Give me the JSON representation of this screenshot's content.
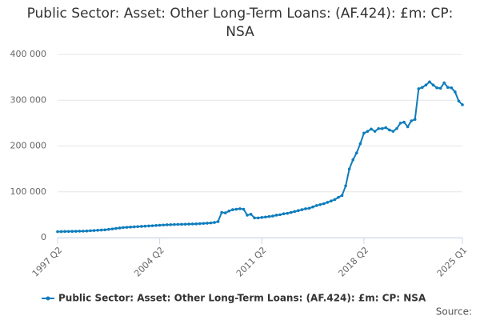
{
  "chart_data": {
    "type": "line",
    "title": "Public Sector: Asset: Other Long-Term Loans: (AF.424): £m: CP: NSA",
    "source": "Source:",
    "categories": [
      "1997 Q2",
      null,
      null,
      null,
      null,
      null,
      null,
      null,
      null,
      null,
      null,
      null,
      null,
      null,
      null,
      null,
      null,
      null,
      null,
      null,
      null,
      null,
      null,
      null,
      null,
      null,
      null,
      null,
      "2004 Q2",
      null,
      null,
      null,
      null,
      null,
      null,
      null,
      null,
      null,
      null,
      null,
      null,
      null,
      null,
      null,
      null,
      null,
      null,
      null,
      null,
      null,
      null,
      null,
      null,
      null,
      null,
      null,
      "2011 Q2",
      null,
      null,
      null,
      null,
      null,
      null,
      null,
      null,
      null,
      null,
      null,
      null,
      null,
      null,
      null,
      null,
      null,
      null,
      null,
      null,
      null,
      null,
      null,
      null,
      null,
      null,
      null,
      "2018 Q2",
      null,
      null,
      null,
      null,
      null,
      null,
      null,
      null,
      null,
      null,
      null,
      null,
      null,
      null,
      null,
      null,
      null,
      null,
      null,
      null,
      null,
      null,
      null,
      null,
      null,
      null,
      "2025 Q1"
    ],
    "series": [
      {
        "name": "Public Sector: Asset: Other Long-Term Loans: (AF.424): £m: CP: NSA",
        "color": "#0e7cbc",
        "values": [
          13000,
          13200,
          13400,
          13500,
          13600,
          13800,
          14000,
          14200,
          14500,
          15000,
          15500,
          16000,
          16500,
          17000,
          18000,
          19000,
          20000,
          21000,
          22000,
          22500,
          23000,
          23500,
          24000,
          24500,
          25000,
          25500,
          26000,
          26500,
          27000,
          27500,
          28000,
          28200,
          28500,
          28800,
          29000,
          29200,
          29500,
          29800,
          30000,
          30500,
          31000,
          31500,
          32000,
          33000,
          35000,
          55000,
          54000,
          58000,
          61000,
          62000,
          63000,
          62000,
          49000,
          51000,
          43000,
          43000,
          44000,
          45000,
          46000,
          47000,
          49000,
          50000,
          52000,
          53000,
          55000,
          57000,
          59000,
          61000,
          63000,
          64000,
          67000,
          70000,
          72000,
          74000,
          77000,
          80000,
          83000,
          88000,
          92000,
          113000,
          150000,
          170000,
          185000,
          205000,
          228000,
          232000,
          237000,
          232000,
          238000,
          238000,
          240000,
          235000,
          232000,
          238000,
          250000,
          252000,
          242000,
          255000,
          258000,
          325000,
          328000,
          333000,
          340000,
          333000,
          327000,
          326000,
          338000,
          328000,
          327000,
          318000,
          298000,
          290000
        ]
      }
    ],
    "ylim": [
      0,
      400000
    ],
    "yticks": [
      0,
      {
        "value": 100000,
        "label": "100 000"
      },
      {
        "value": 200000,
        "label": "200 000"
      },
      {
        "value": 300000,
        "label": "300 000"
      },
      {
        "value": 400000,
        "label": "400 000"
      }
    ],
    "grid": true,
    "legend": "bottom"
  }
}
